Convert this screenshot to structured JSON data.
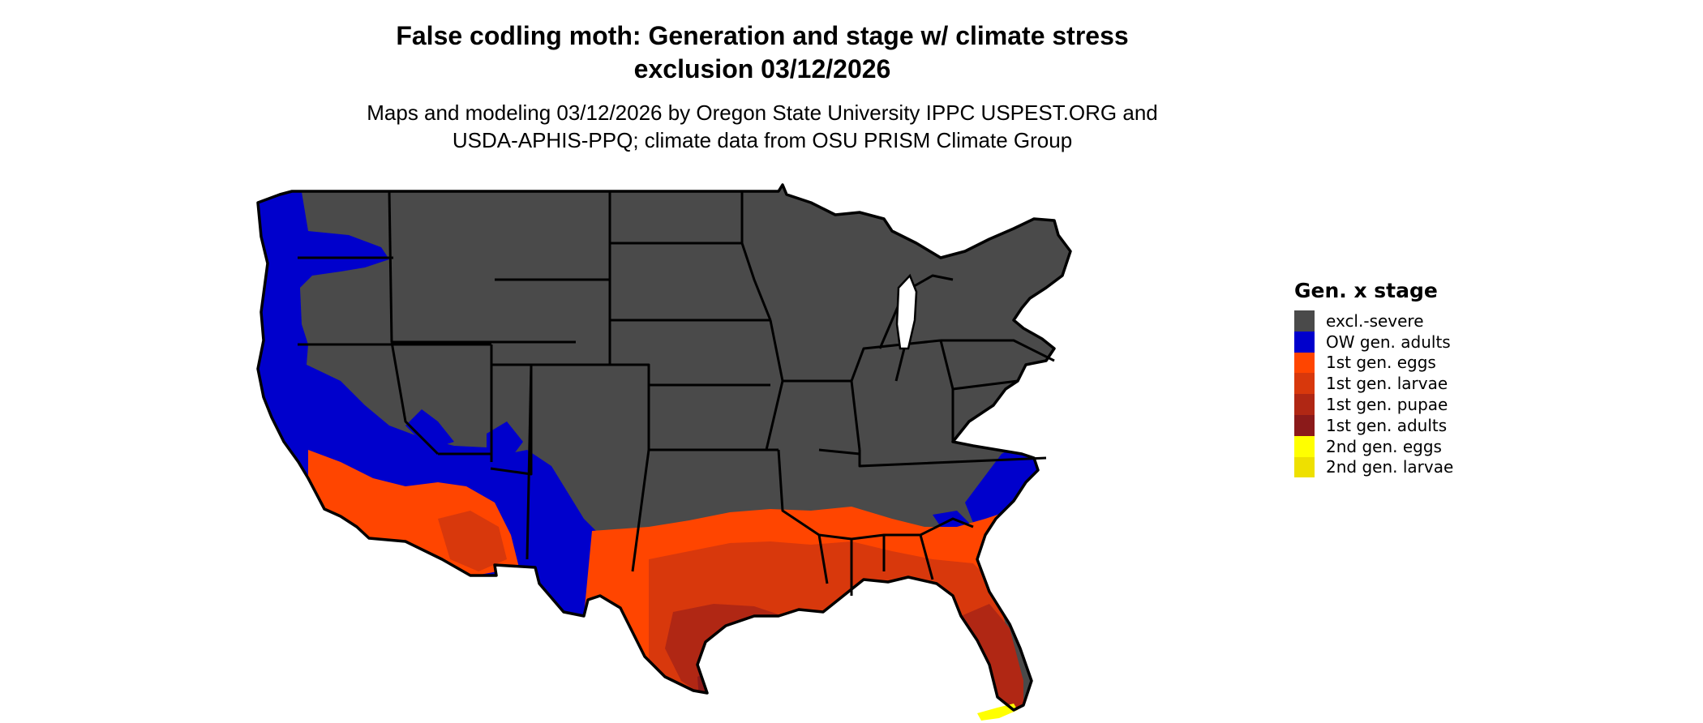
{
  "title": {
    "line1": "False codling moth: Generation and stage w/ climate stress",
    "line2": "exclusion 03/12/2026"
  },
  "subtitle": {
    "line1": "Maps and modeling 03/12/2026 by Oregon State University IPPC USPEST.ORG and",
    "line2": "USDA-APHIS-PPQ; climate data from OSU PRISM Climate Group"
  },
  "legend": {
    "title": "Gen. x stage",
    "items": [
      {
        "label": "excl.-severe",
        "color": "#4a4a4a"
      },
      {
        "label": "OW gen. adults",
        "color": "#0000cc"
      },
      {
        "label": "1st gen. eggs",
        "color": "#ff4500"
      },
      {
        "label": "1st gen. larvae",
        "color": "#d8380c"
      },
      {
        "label": "1st gen. pupae",
        "color": "#b02714"
      },
      {
        "label": "1st gen. adults",
        "color": "#8b1a1a"
      },
      {
        "label": "2nd gen. eggs",
        "color": "#ffff00"
      },
      {
        "label": "2nd gen. larvae",
        "color": "#eee000"
      }
    ]
  }
}
